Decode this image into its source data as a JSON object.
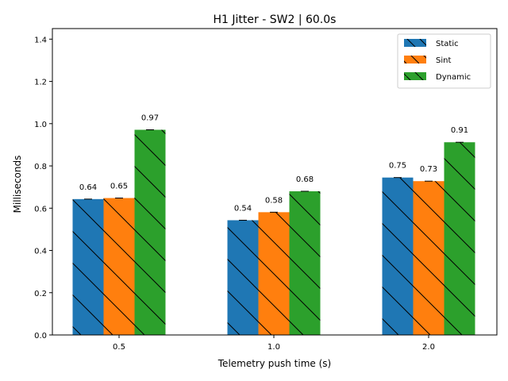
{
  "chart_data": {
    "type": "bar",
    "title": "H1 Jitter - SW2 | 60.0s",
    "xlabel": "Telemetry push time (s)",
    "ylabel": "Milliseconds",
    "categories": [
      "0.5",
      "1.0",
      "2.0"
    ],
    "ylim": [
      0,
      1.45
    ],
    "yticks": [
      "0.0",
      "0.2",
      "0.4",
      "0.6",
      "0.8",
      "1.0",
      "1.2",
      "1.4"
    ],
    "grid": false,
    "legend_position": "top-right",
    "hatch": "backslash",
    "series": [
      {
        "name": "Static",
        "color": "#1f77b4",
        "values": [
          0.643,
          0.543,
          0.745
        ],
        "labels": [
          "0.64",
          "0.54",
          "0.75"
        ]
      },
      {
        "name": "Sint",
        "color": "#ff7f0e",
        "values": [
          0.648,
          0.581,
          0.728
        ],
        "labels": [
          "0.65",
          "0.58",
          "0.73"
        ]
      },
      {
        "name": "Dynamic",
        "color": "#2ca02c",
        "values": [
          0.971,
          0.68,
          0.912
        ],
        "labels": [
          "0.97",
          "0.68",
          "0.91"
        ]
      }
    ]
  }
}
